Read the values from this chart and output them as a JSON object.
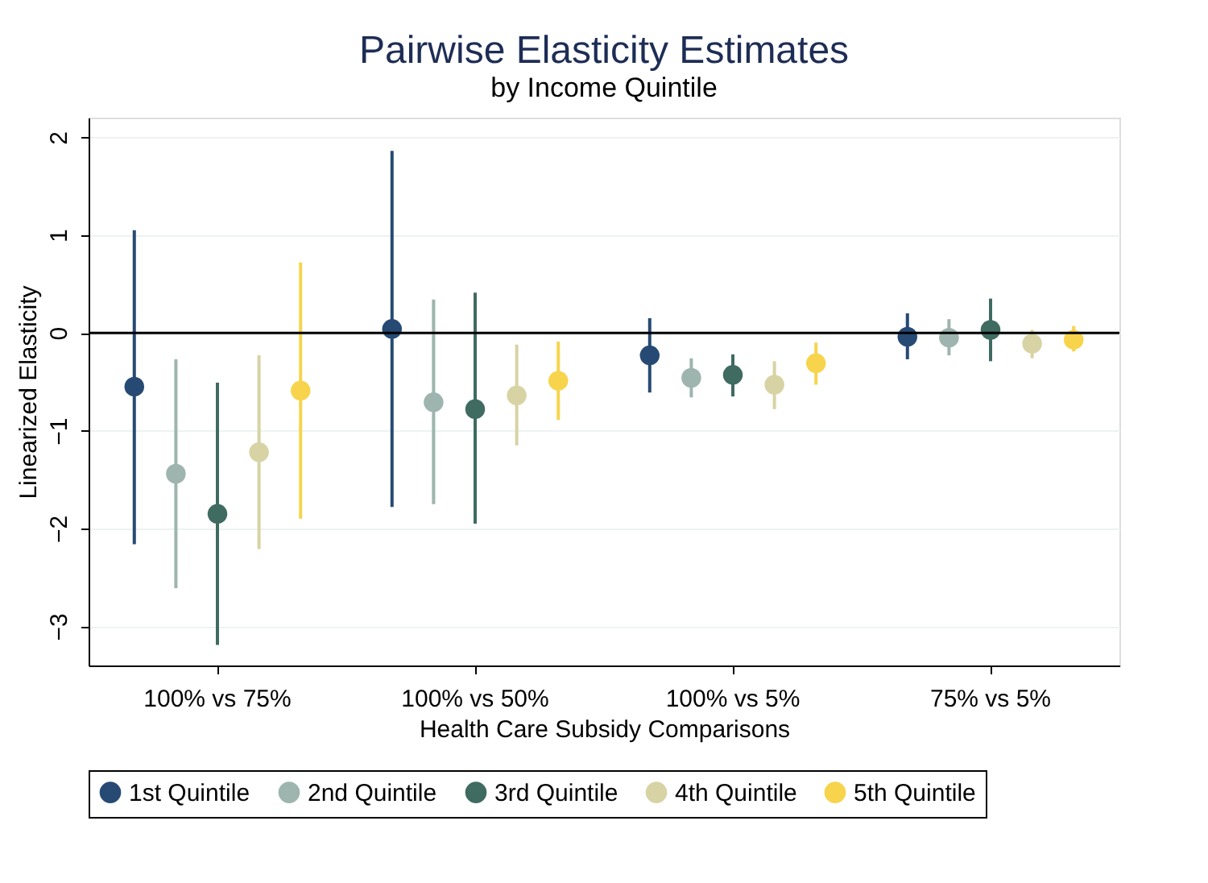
{
  "chart_data": {
    "type": "scatter",
    "title": "Pairwise Elasticity Estimates",
    "subtitle": "by Income Quintile",
    "xlabel": "Health Care Subsidy Comparisons",
    "ylabel": "Linearized Elasticity",
    "categories": [
      "100% vs 75%",
      "100% vs 50%",
      "100% vs 5%",
      "75% vs 5%"
    ],
    "series": [
      {
        "name": "1st Quintile",
        "color": "#264a73",
        "values": [
          -0.55,
          0.04,
          -0.23,
          -0.04
        ],
        "errors": [
          [
            -2.16,
            1.05
          ],
          [
            -1.78,
            1.86
          ],
          [
            -0.61,
            0.15
          ],
          [
            -0.27,
            0.2
          ]
        ]
      },
      {
        "name": "2nd Quintile",
        "color": "#9db5ae",
        "values": [
          -1.44,
          -0.71,
          -0.46,
          -0.05
        ],
        "errors": [
          [
            -2.61,
            -0.27
          ],
          [
            -1.75,
            0.34
          ],
          [
            -0.66,
            -0.26
          ],
          [
            -0.23,
            0.14
          ]
        ]
      },
      {
        "name": "3rd Quintile",
        "color": "#3f6b61",
        "values": [
          -1.85,
          -0.78,
          -0.43,
          0.03
        ],
        "errors": [
          [
            -3.19,
            -0.51
          ],
          [
            -1.95,
            0.41
          ],
          [
            -0.65,
            -0.22
          ],
          [
            -0.29,
            0.35
          ]
        ]
      },
      {
        "name": "4th Quintile",
        "color": "#d8d3a4",
        "values": [
          -1.22,
          -0.64,
          -0.53,
          -0.11
        ],
        "errors": [
          [
            -2.21,
            -0.23
          ],
          [
            -1.15,
            -0.12
          ],
          [
            -0.78,
            -0.29
          ],
          [
            -0.26,
            0.03
          ]
        ]
      },
      {
        "name": "5th Quintile",
        "color": "#f7d44c",
        "values": [
          -0.59,
          -0.49,
          -0.31,
          -0.07
        ],
        "errors": [
          [
            -1.9,
            0.72
          ],
          [
            -0.89,
            -0.09
          ],
          [
            -0.53,
            -0.1
          ],
          [
            -0.19,
            0.07
          ]
        ]
      }
    ],
    "ylim": [
      -3.4,
      2.2
    ],
    "yticks": [
      -3,
      -2,
      -1,
      0,
      1,
      2
    ],
    "grid": "y",
    "legend": "bottom",
    "marker": "circle",
    "ref_lines": [
      {
        "axis": "y",
        "value": 0,
        "color": "#000000"
      }
    ]
  }
}
